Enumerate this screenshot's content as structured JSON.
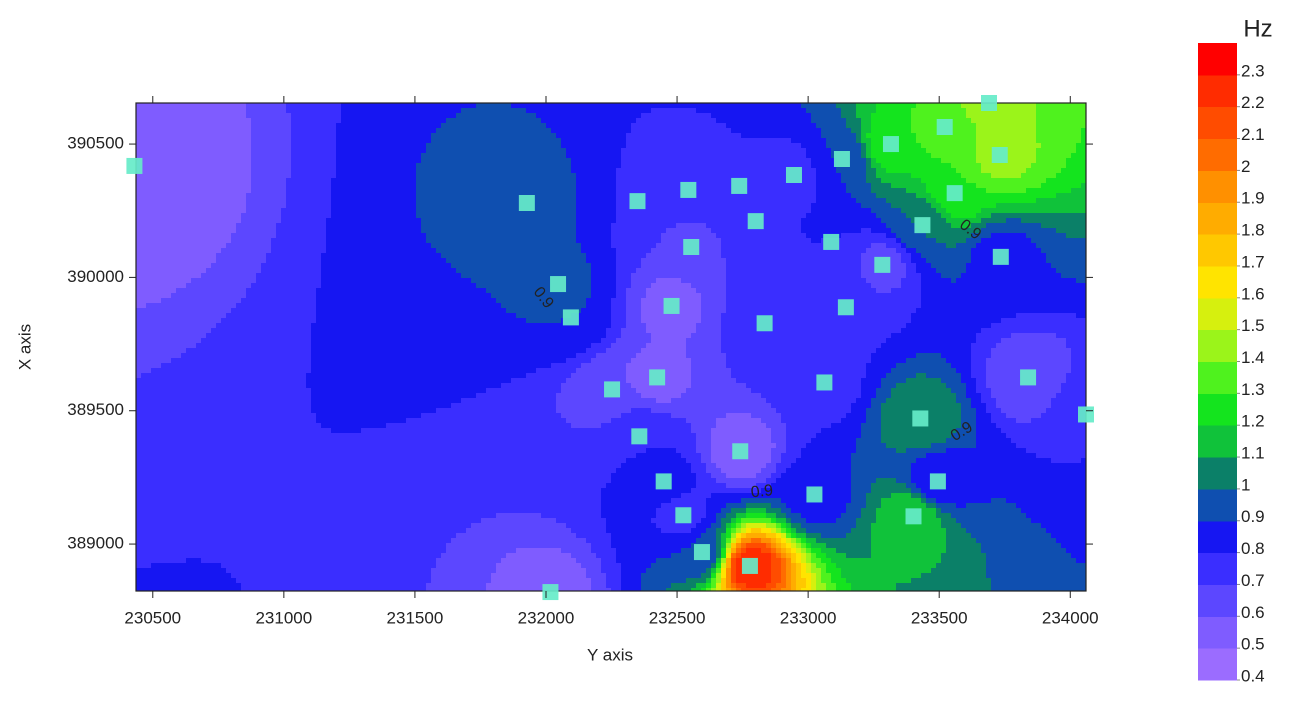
{
  "chart_data": {
    "type": "contour",
    "xlabel": "Y axis",
    "ylabel": "X axis",
    "xlim": [
      230436,
      234060
    ],
    "ylim": [
      388824,
      390654
    ],
    "xticks": [
      230500,
      231000,
      231500,
      232000,
      232500,
      233000,
      233500,
      234000
    ],
    "yticks": [
      389000,
      389500,
      390000,
      390500
    ],
    "points": {
      "color": "#66ebc9",
      "x": [
        230430,
        231927,
        232046,
        232095,
        232017,
        232349,
        232543,
        232737,
        232946,
        233129,
        233316,
        233521,
        233690,
        233731,
        233559,
        233436,
        232800,
        233088,
        232554,
        233283,
        233735,
        232479,
        233144,
        232834,
        232252,
        232424,
        233062,
        233839,
        233428,
        234060,
        232356,
        232741,
        232449,
        233495,
        233024,
        232524,
        233402,
        232595,
        232778
      ],
      "y": [
        390418,
        390279,
        389975,
        389850,
        388820,
        390286,
        390328,
        390343,
        390384,
        390444,
        390500,
        390564,
        390654,
        390459,
        390316,
        390196,
        390211,
        390133,
        390114,
        390047,
        390077,
        389893,
        389888,
        389828,
        389580,
        389625,
        389606,
        389625,
        389471,
        389486,
        389404,
        389348,
        389235,
        389235,
        389186,
        389108,
        389104,
        388970,
        388918
      ],
      "values": [
        0.5,
        1.0,
        0.95,
        0.9,
        0.55,
        0.8,
        0.75,
        0.8,
        0.75,
        0.9,
        1.3,
        1.35,
        1.45,
        1.45,
        1.3,
        1.0,
        0.8,
        0.8,
        0.65,
        0.65,
        0.85,
        0.55,
        0.75,
        0.75,
        0.6,
        0.55,
        0.75,
        0.6,
        1.1,
        0.8,
        0.8,
        0.5,
        0.85,
        0.8,
        0.85,
        0.75,
        1.2,
        0.9,
        2.3
      ]
    },
    "contour_labels": [
      0.9,
      0.9,
      0.9,
      0.9
    ],
    "colorbar": {
      "title": "Hz",
      "ticks": [
        0.4,
        0.5,
        0.6,
        0.7,
        0.8,
        0.9,
        1,
        1.1,
        1.2,
        1.3,
        1.4,
        1.5,
        1.6,
        1.7,
        1.8,
        1.9,
        2,
        2.1,
        2.2,
        2.3
      ],
      "colors": [
        "#9b6cff",
        "#7f5cff",
        "#5c47ff",
        "#3a2eff",
        "#1616f2",
        "#0f4fb0",
        "#0b8068",
        "#10c23a",
        "#14e41e",
        "#4ff21e",
        "#9bf41a",
        "#d6f00e",
        "#ffe400",
        "#ffc800",
        "#ffac00",
        "#ff9000",
        "#ff6c00",
        "#ff4c00",
        "#ff2c00",
        "#ff0000"
      ]
    }
  }
}
